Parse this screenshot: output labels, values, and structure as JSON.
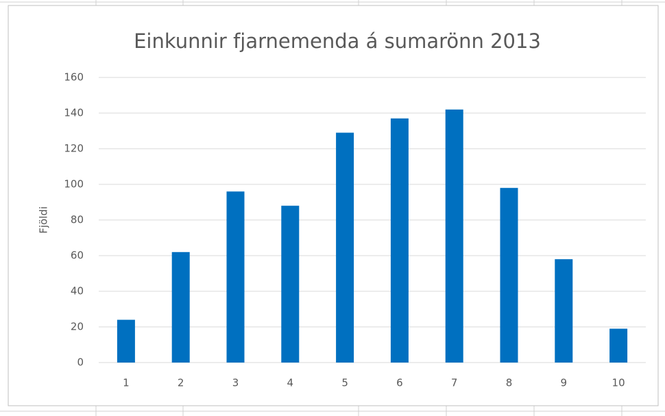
{
  "chart_data": {
    "type": "bar",
    "title": "Einkunnir fjarnemenda á sumarönn 2013",
    "y_label": "Fjöldi",
    "categories": [
      "1",
      "2",
      "3",
      "4",
      "5",
      "6",
      "7",
      "8",
      "9",
      "10"
    ],
    "values": [
      24,
      62,
      96,
      88,
      129,
      137,
      142,
      98,
      58,
      19
    ],
    "color": "#0070c0",
    "ylim": [
      0,
      160
    ],
    "yticks": [
      0,
      20,
      40,
      60,
      80,
      100,
      120,
      140,
      160
    ],
    "grid": true
  }
}
